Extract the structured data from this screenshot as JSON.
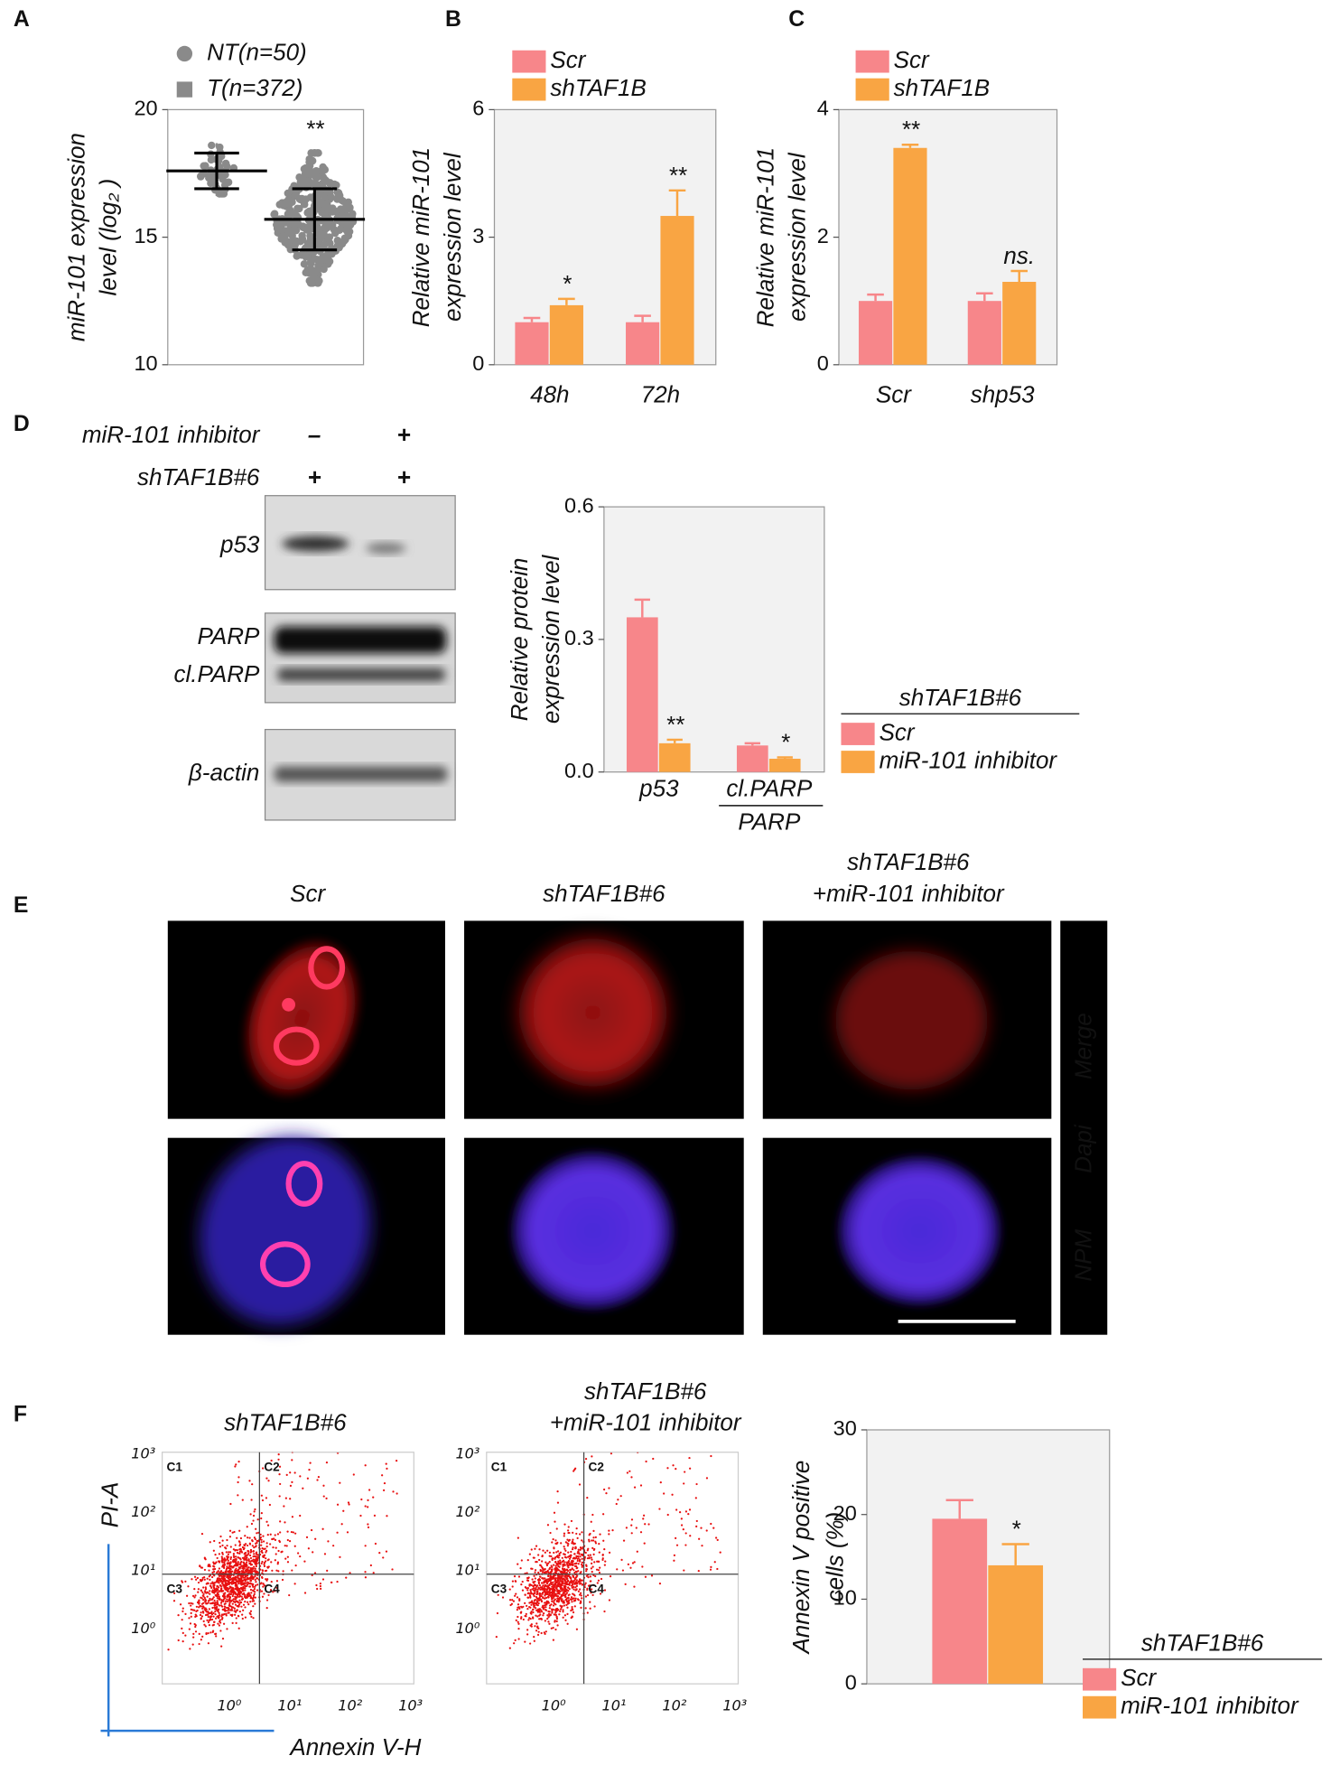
{
  "chart_data": [
    {
      "type": "dotplot",
      "panel": "A",
      "ylabel": [
        "miR-101 expression",
        "level (log₂ )"
      ],
      "ylim": [
        10,
        20
      ],
      "yticks": [
        10,
        15,
        20
      ],
      "background": "#ffffff",
      "legend_text_color": "#e0203a",
      "series": [
        {
          "name": "NT(n=50)",
          "n": 50,
          "marker": "circle",
          "color": "#8a8a8a",
          "mean": 17.6,
          "sd": 0.7,
          "min": 16.7,
          "max": 18.6,
          "significance": null
        },
        {
          "name": "T(n=372)",
          "n": 372,
          "marker": "square",
          "color": "#8a8a8a",
          "mean": 15.7,
          "sd": 1.2,
          "min": 13.2,
          "max": 18.3,
          "significance": "**"
        }
      ]
    },
    {
      "type": "bar",
      "panel": "B",
      "ylabel": [
        "Relative miR-101",
        "expression level"
      ],
      "categories": [
        "48h",
        "72h"
      ],
      "category_color": "#e0203a",
      "ylim": [
        0,
        6
      ],
      "yticks": [
        0,
        3,
        6
      ],
      "background": "#f2f2f2",
      "series": [
        {
          "name": "Scr",
          "color": "#f7868a",
          "values": [
            1.0,
            1.0
          ],
          "errors": [
            0.1,
            0.15
          ],
          "significance": [
            null,
            null
          ]
        },
        {
          "name": "shTAF1B",
          "color": "#f9a543",
          "values": [
            1.4,
            3.5
          ],
          "errors": [
            0.15,
            0.6
          ],
          "significance": [
            "*",
            "**"
          ]
        }
      ]
    },
    {
      "type": "bar",
      "panel": "C",
      "ylabel": [
        "Relative miR-101",
        "expression level"
      ],
      "categories": [
        "Scr",
        "shp53"
      ],
      "category_color": "#e0203a",
      "ylim": [
        0,
        4
      ],
      "yticks": [
        0,
        2,
        4
      ],
      "background": "#f2f2f2",
      "series": [
        {
          "name": "Scr",
          "color": "#f7868a",
          "values": [
            1.0,
            1.0
          ],
          "errors": [
            0.1,
            0.12
          ],
          "significance": [
            null,
            null
          ]
        },
        {
          "name": "shTAF1B",
          "color": "#f9a543",
          "values": [
            3.4,
            1.3
          ],
          "errors": [
            0.05,
            0.17
          ],
          "significance": [
            "**",
            "ns."
          ]
        }
      ]
    },
    {
      "type": "bar",
      "ylabel": [
        "Relative protein",
        "expression level"
      ],
      "categories": [
        "p53",
        "cl.PARP"
      ],
      "category_denominators": [
        null,
        "PARP"
      ],
      "category_color": "#111111",
      "ylim": [
        0,
        0.6
      ],
      "yticks": [
        {
          "value": 0,
          "label": "0.0"
        },
        0.3,
        0.6
      ],
      "background": "#f2f2f2",
      "legend_title": "shTAF1B#6",
      "series": [
        {
          "name": "Scr",
          "color": "#f7868a",
          "values": [
            0.35,
            0.06
          ],
          "errors": [
            0.04,
            0.005
          ],
          "significance": [
            null,
            null
          ]
        },
        {
          "name": "miR-101 inhibitor",
          "color": "#f9a543",
          "values": [
            0.065,
            0.03
          ],
          "errors": [
            0.008,
            0.003
          ],
          "significance": [
            "**",
            "*"
          ]
        }
      ]
    },
    {
      "type": "bar",
      "ylabel": [
        "Annexin V positive",
        "cells (%)"
      ],
      "categories": [
        null
      ],
      "category_color": "#111111",
      "ylim": [
        0,
        30
      ],
      "yticks": [
        0,
        10,
        20,
        30
      ],
      "background": "#f2f2f2",
      "legend_title": "shTAF1B#6",
      "series": [
        {
          "name": "Scr",
          "color": "#f7868a",
          "values": [
            19.5
          ],
          "errors": [
            2.2
          ],
          "significance": [
            null
          ]
        },
        {
          "name": "miR-101 inhibitor",
          "color": "#f9a543",
          "values": [
            14
          ],
          "errors": [
            2.5
          ],
          "significance": [
            "*"
          ]
        }
      ]
    }
  ],
  "blot": {
    "panel": "D",
    "treatments": [
      {
        "name": "miR-101 inhibitor",
        "lanes": [
          "–",
          "+"
        ]
      },
      {
        "name": "shTAF1B#6",
        "lanes": [
          "+",
          "+"
        ]
      }
    ],
    "bands": [
      [
        "p53"
      ],
      [
        "PARP",
        "cl.PARP"
      ],
      [
        "β-actin"
      ]
    ]
  },
  "immunofluorescence": {
    "panel": "E",
    "columns": [
      [
        "Scr"
      ],
      [
        "shTAF1B#6"
      ],
      [
        "shTAF1B#6",
        "+miR-101 inhibitor"
      ]
    ],
    "channels": [
      {
        "name": "NPM",
        "color": "#e0203a"
      },
      {
        "name": "Dapi",
        "color": "#4a7ad6"
      },
      {
        "name": "Merge",
        "color": "#e0203a"
      }
    ]
  },
  "flow": {
    "panel": "F",
    "plots": [
      {
        "title": [
          "shTAF1B#6"
        ]
      },
      {
        "title": [
          "shTAF1B#6",
          "+miR-101 inhibitor"
        ]
      }
    ],
    "quadrants": [
      "C1",
      "C2",
      "C3",
      "C4"
    ],
    "y_tick_labels": [
      "10³",
      "10²",
      "10¹",
      "10⁰"
    ],
    "x_tick_labels": [
      "10⁰",
      "10¹",
      "10²",
      "10³"
    ],
    "ylabel": "PI-A",
    "xlabel": "Annexin V-H",
    "axis_color": "#2a7ad6"
  }
}
